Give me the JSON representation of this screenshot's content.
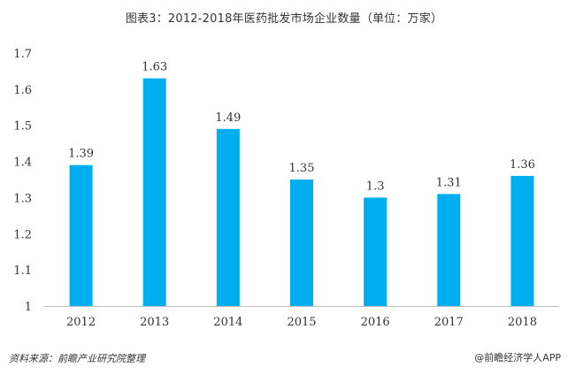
{
  "chart_data": {
    "type": "bar",
    "title": "图表3：2012-2018年医药批发市场企业数量（单位：万家）",
    "categories": [
      "2012",
      "2013",
      "2014",
      "2015",
      "2016",
      "2017",
      "2018"
    ],
    "values": [
      1.39,
      1.63,
      1.49,
      1.35,
      1.3,
      1.31,
      1.36
    ],
    "value_labels": [
      "1.39",
      "1.63",
      "1.49",
      "1.35",
      "1.3",
      "1.31",
      "1.36"
    ],
    "yticks": [
      "1",
      "1.1",
      "1.2",
      "1.3",
      "1.4",
      "1.5",
      "1.6",
      "1.7"
    ],
    "ylim": [
      1,
      1.7
    ],
    "bar_color": "#00AEEF",
    "grid": false,
    "legend": "none"
  },
  "footer": {
    "source": "资料来源：前瞻产业研究院整理",
    "credit": "@前瞻经济学人APP"
  }
}
